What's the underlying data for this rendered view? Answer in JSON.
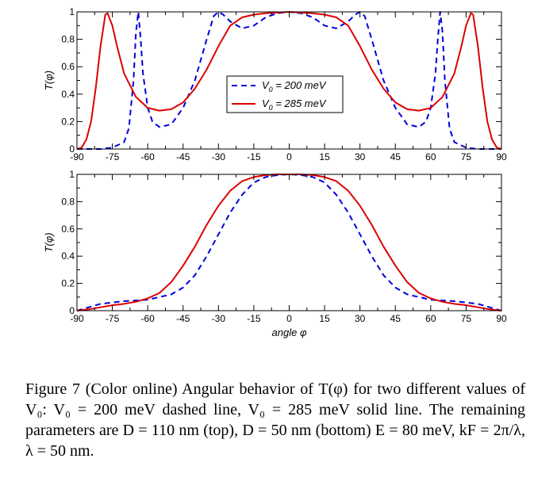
{
  "chart_data": [
    {
      "type": "line",
      "panel": "top",
      "ylabel": "T(φ)",
      "xlabel": "",
      "xlim": [
        -90,
        90
      ],
      "ylim": [
        0,
        1
      ],
      "x_ticks": [
        "-90",
        "-75",
        "-60",
        "-45",
        "-30",
        "-15",
        "0",
        "15",
        "30",
        "45",
        "60",
        "75",
        "90"
      ],
      "y_ticks": [
        "0",
        "0.2",
        "0.4",
        "0.6",
        "0.8",
        "1"
      ],
      "legend": "center",
      "series": [
        {
          "name": "V0 = 200 meV",
          "color": "#0000dd",
          "style": "dashed",
          "x": [
            0,
            5,
            10,
            15,
            20,
            25,
            28,
            30,
            32,
            35,
            40,
            45,
            50,
            55,
            58,
            60,
            62,
            63,
            64,
            65,
            66,
            68,
            70,
            75,
            80,
            85,
            90
          ],
          "y": [
            1.0,
            0.99,
            0.96,
            0.9,
            0.88,
            0.93,
            0.98,
            1.0,
            0.97,
            0.8,
            0.5,
            0.3,
            0.18,
            0.16,
            0.2,
            0.3,
            0.55,
            0.8,
            1.0,
            0.85,
            0.5,
            0.15,
            0.05,
            0.01,
            0.0,
            0.0,
            0.0
          ]
        },
        {
          "name": "V0 = 285 meV",
          "color": "#dd0000",
          "style": "solid",
          "x": [
            0,
            10,
            15,
            20,
            25,
            30,
            35,
            40,
            45,
            50,
            55,
            60,
            65,
            70,
            73,
            75,
            77,
            78,
            80,
            82,
            84,
            86,
            88,
            90
          ],
          "y": [
            1.0,
            0.99,
            0.98,
            0.96,
            0.9,
            0.75,
            0.58,
            0.44,
            0.34,
            0.29,
            0.28,
            0.3,
            0.38,
            0.55,
            0.75,
            0.9,
            0.99,
            0.98,
            0.75,
            0.45,
            0.2,
            0.07,
            0.01,
            0.0
          ]
        }
      ]
    },
    {
      "type": "line",
      "panel": "bottom",
      "ylabel": "T(φ)",
      "xlabel": "angle φ",
      "xlim": [
        -90,
        90
      ],
      "ylim": [
        0,
        1
      ],
      "x_ticks": [
        "-90",
        "-75",
        "-60",
        "-45",
        "-30",
        "-15",
        "0",
        "15",
        "30",
        "45",
        "60",
        "75",
        "90"
      ],
      "y_ticks": [
        "0",
        "0.2",
        "0.4",
        "0.6",
        "0.8",
        "1"
      ],
      "series": [
        {
          "name": "V0 = 200 meV",
          "color": "#0000dd",
          "style": "dashed",
          "x": [
            0,
            5,
            10,
            15,
            20,
            25,
            30,
            35,
            40,
            45,
            50,
            55,
            60,
            65,
            70,
            75,
            80,
            85,
            90
          ],
          "y": [
            1.0,
            0.995,
            0.98,
            0.94,
            0.85,
            0.72,
            0.56,
            0.4,
            0.26,
            0.17,
            0.12,
            0.1,
            0.08,
            0.075,
            0.07,
            0.06,
            0.05,
            0.025,
            0.0
          ]
        },
        {
          "name": "V0 = 285 meV",
          "color": "#dd0000",
          "style": "solid",
          "x": [
            0,
            5,
            10,
            15,
            20,
            25,
            30,
            35,
            40,
            45,
            50,
            55,
            60,
            65,
            70,
            75,
            80,
            85,
            90
          ],
          "y": [
            1.0,
            1.0,
            0.995,
            0.98,
            0.95,
            0.88,
            0.77,
            0.63,
            0.47,
            0.33,
            0.21,
            0.13,
            0.09,
            0.065,
            0.05,
            0.04,
            0.025,
            0.01,
            0.0
          ]
        }
      ]
    }
  ],
  "legend": {
    "entry1": "V",
    "entry1_sub": "0",
    "entry1_rest": " = 200 meV",
    "entry2": "V",
    "entry2_sub": "0",
    "entry2_rest": " = 285 meV"
  },
  "caption": "Figure 7 (Color online) Angular behavior of T(φ) for two different values of V₀: V₀ = 200 meV dashed line, V₀ = 285 meV solid line. The remaining parameters are D = 110 nm (top), D = 50 nm (bottom) E = 80 meV, kF = 2π/λ, λ = 50 nm."
}
